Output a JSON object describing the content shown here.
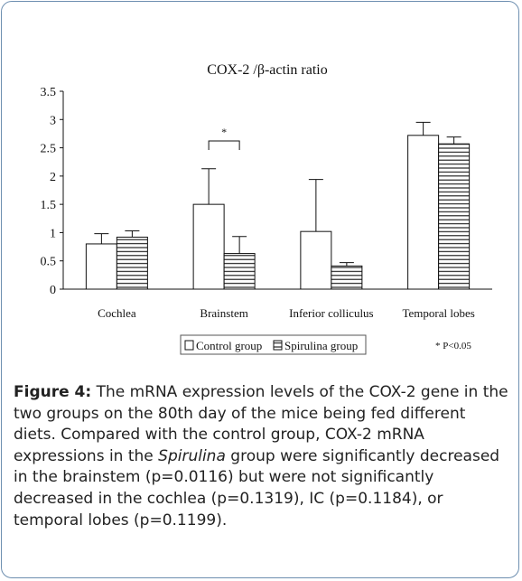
{
  "chart_data": {
    "type": "bar",
    "title": "COX-2 /β-actin ratio",
    "categories": [
      "Cochlea",
      "Brainstem",
      "Inferior colliculus",
      "Temporal lobes"
    ],
    "series": [
      {
        "name": "Control group",
        "values": [
          0.8,
          1.5,
          1.02,
          2.72
        ],
        "error_upper": [
          0.98,
          2.13,
          1.94,
          2.95
        ],
        "fill": "#ffffff"
      },
      {
        "name": "Spirulina group",
        "values": [
          0.92,
          0.63,
          0.41,
          2.57
        ],
        "error_upper": [
          1.03,
          0.93,
          0.47,
          2.69
        ],
        "fill": "hatched"
      }
    ],
    "ylim": [
      0,
      3.5
    ],
    "yticks": [
      "0",
      "0.5",
      "1",
      "1.5",
      "2",
      "2.5",
      "3",
      "3.5"
    ],
    "annotations": [
      {
        "category": "Brainstem",
        "text": "*"
      }
    ],
    "legend_position": "bottom-center",
    "footnote": "* P<0.05",
    "grid": false
  },
  "caption": {
    "label": "Figure 4:",
    "text_1": " The mRNA expression levels of the COX-2 gene in the two groups on the 80th day of the mice being fed different diets. Compared with the control group, COX-2 mRNA expressions in the ",
    "italic": "Spirulina",
    "text_2": " group were significantly decreased in the brainstem (p=0.0116) but were not significantly decreased in the cochlea (p=0.1319), IC (p=0.1184), or temporal lobes (p=0.1199)."
  }
}
